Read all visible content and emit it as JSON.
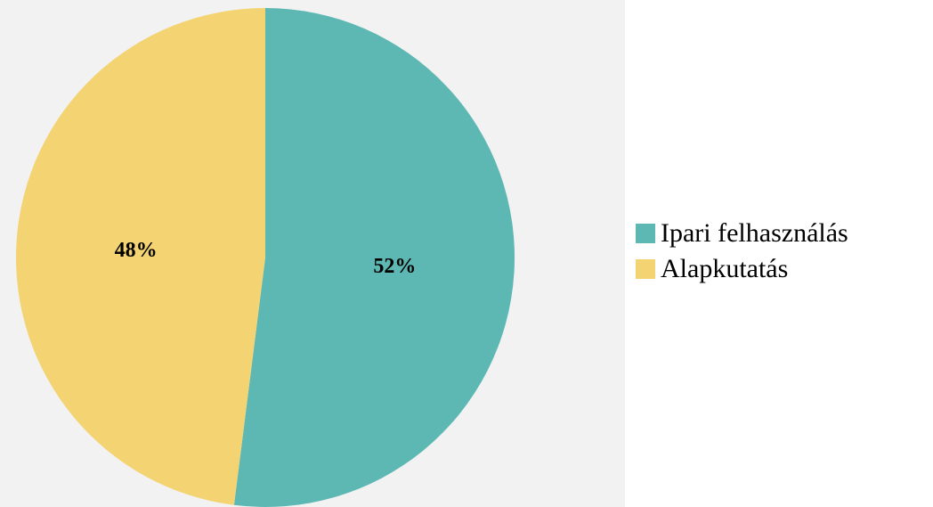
{
  "chart_data": {
    "type": "pie",
    "categories": [
      "Ipari felhasználás",
      "Alapkutatás"
    ],
    "values": [
      52,
      48
    ],
    "labels": [
      "52%",
      "48%"
    ],
    "colors": [
      "#5db8b4",
      "#f3d372"
    ],
    "legend_position": "right"
  }
}
